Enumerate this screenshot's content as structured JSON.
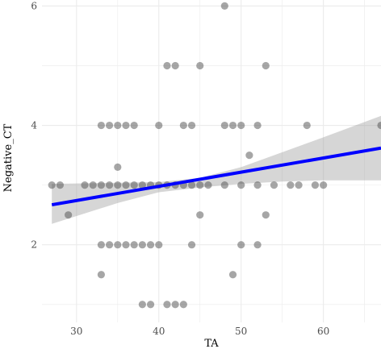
{
  "chart_data": {
    "type": "scatter",
    "xlabel": "TA",
    "ylabel": "Negative_CT",
    "xlim": [
      25.8,
      67
    ],
    "ylim": [
      0.7,
      6.1
    ],
    "x_ticks": [
      30,
      40,
      50,
      60
    ],
    "y_ticks": [
      2,
      4,
      6
    ],
    "grid": true,
    "points": [
      {
        "x": 27,
        "y": 3
      },
      {
        "x": 28,
        "y": 3
      },
      {
        "x": 29,
        "y": 2.5
      },
      {
        "x": 31,
        "y": 3
      },
      {
        "x": 32,
        "y": 3
      },
      {
        "x": 33,
        "y": 3
      },
      {
        "x": 34,
        "y": 3
      },
      {
        "x": 35,
        "y": 3
      },
      {
        "x": 36,
        "y": 3
      },
      {
        "x": 37,
        "y": 3
      },
      {
        "x": 38,
        "y": 3
      },
      {
        "x": 39,
        "y": 3
      },
      {
        "x": 40,
        "y": 3
      },
      {
        "x": 41,
        "y": 3
      },
      {
        "x": 42,
        "y": 3
      },
      {
        "x": 43,
        "y": 3
      },
      {
        "x": 44,
        "y": 3
      },
      {
        "x": 45,
        "y": 3
      },
      {
        "x": 46,
        "y": 3
      },
      {
        "x": 48,
        "y": 3
      },
      {
        "x": 50,
        "y": 3
      },
      {
        "x": 52,
        "y": 3
      },
      {
        "x": 54,
        "y": 3
      },
      {
        "x": 56,
        "y": 3
      },
      {
        "x": 57,
        "y": 3
      },
      {
        "x": 59,
        "y": 3
      },
      {
        "x": 60,
        "y": 3
      },
      {
        "x": 33,
        "y": 4
      },
      {
        "x": 34,
        "y": 4
      },
      {
        "x": 35,
        "y": 4
      },
      {
        "x": 36,
        "y": 4
      },
      {
        "x": 37,
        "y": 4
      },
      {
        "x": 40,
        "y": 4
      },
      {
        "x": 43,
        "y": 4
      },
      {
        "x": 44,
        "y": 4
      },
      {
        "x": 48,
        "y": 4
      },
      {
        "x": 49,
        "y": 4
      },
      {
        "x": 50,
        "y": 4
      },
      {
        "x": 52,
        "y": 4
      },
      {
        "x": 58,
        "y": 4
      },
      {
        "x": 67,
        "y": 4
      },
      {
        "x": 33,
        "y": 2
      },
      {
        "x": 34,
        "y": 2
      },
      {
        "x": 35,
        "y": 2
      },
      {
        "x": 36,
        "y": 2
      },
      {
        "x": 37,
        "y": 2
      },
      {
        "x": 38,
        "y": 2
      },
      {
        "x": 39,
        "y": 2
      },
      {
        "x": 40,
        "y": 2
      },
      {
        "x": 44,
        "y": 2
      },
      {
        "x": 50,
        "y": 2
      },
      {
        "x": 52,
        "y": 2
      },
      {
        "x": 41,
        "y": 5
      },
      {
        "x": 42,
        "y": 5
      },
      {
        "x": 45,
        "y": 5
      },
      {
        "x": 53,
        "y": 5
      },
      {
        "x": 35,
        "y": 3.3
      },
      {
        "x": 51,
        "y": 3.5
      },
      {
        "x": 45,
        "y": 2.5
      },
      {
        "x": 53,
        "y": 2.5
      },
      {
        "x": 33,
        "y": 1.5
      },
      {
        "x": 49,
        "y": 1.5
      },
      {
        "x": 38,
        "y": 1
      },
      {
        "x": 39,
        "y": 1
      },
      {
        "x": 41,
        "y": 1
      },
      {
        "x": 42,
        "y": 1
      },
      {
        "x": 43,
        "y": 1
      },
      {
        "x": 48,
        "y": 6
      }
    ],
    "trend_line": {
      "x": [
        27,
        67
      ],
      "y": [
        2.67,
        3.62
      ],
      "color": "#0000ff"
    },
    "confidence_band": {
      "x": [
        27,
        35,
        40,
        45,
        50,
        55,
        60,
        67
      ],
      "lower": [
        2.35,
        2.7,
        2.88,
        2.96,
        3.02,
        3.06,
        3.08,
        3.08
      ],
      "upper": [
        3.02,
        3.04,
        3.05,
        3.12,
        3.3,
        3.55,
        3.8,
        4.16
      ],
      "color": "#999999"
    },
    "point_color": "#4d4d4d",
    "background": "#ffffff",
    "grid_color": "#ebebeb"
  }
}
